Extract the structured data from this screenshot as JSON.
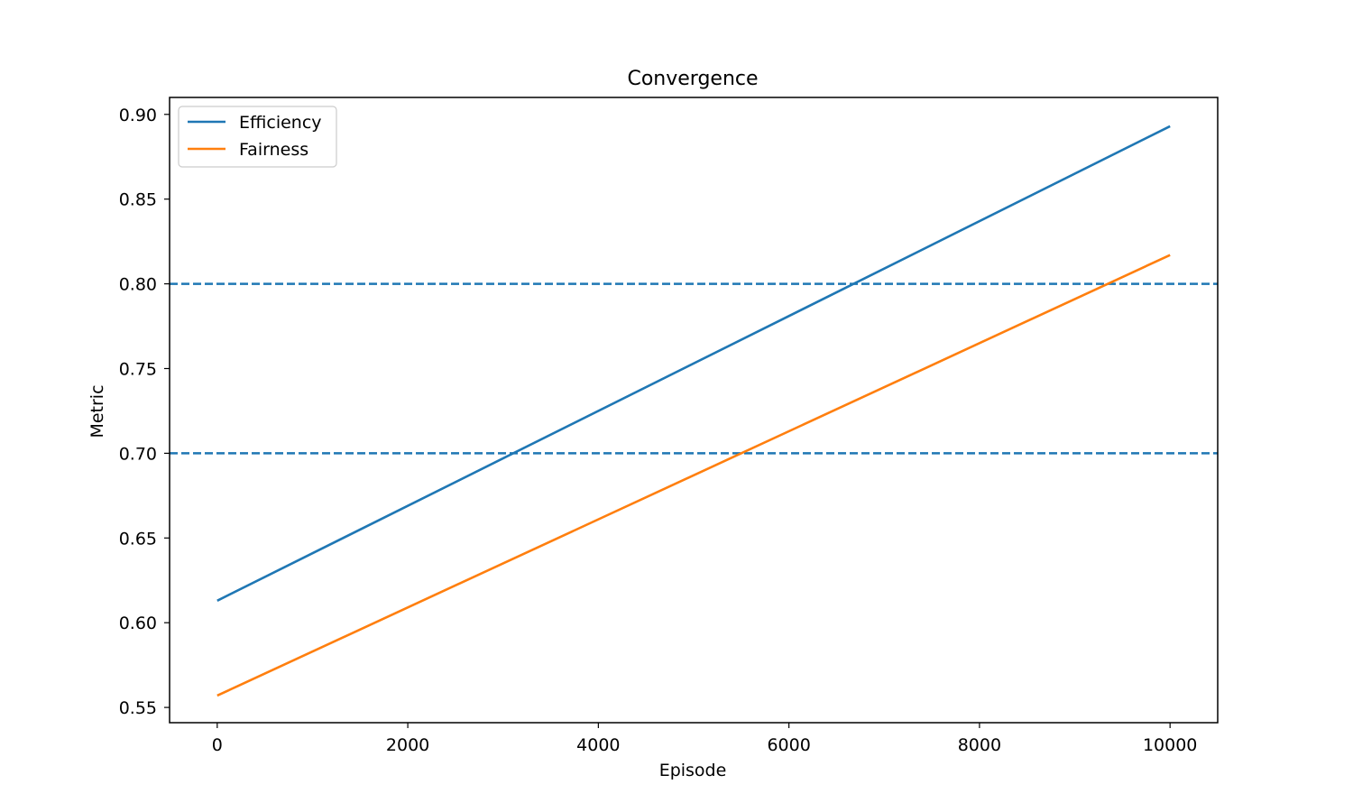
{
  "chart_data": {
    "type": "line",
    "title": "Convergence",
    "xlabel": "Episode",
    "ylabel": "Metric",
    "xlim": [
      -500,
      10500
    ],
    "ylim": [
      0.541,
      0.91
    ],
    "xticks": [
      0,
      2000,
      4000,
      6000,
      8000,
      10000
    ],
    "xtick_labels": [
      "0",
      "2000",
      "4000",
      "6000",
      "8000",
      "10000"
    ],
    "yticks": [
      0.55,
      0.6,
      0.65,
      0.7,
      0.75,
      0.8,
      0.85,
      0.9
    ],
    "ytick_labels": [
      "0.55",
      "0.60",
      "0.65",
      "0.70",
      "0.75",
      "0.80",
      "0.85",
      "0.90"
    ],
    "grid": false,
    "legend_position": "top-left",
    "series": [
      {
        "name": "Efficiency",
        "color": "#1f77b4",
        "x": [
          0,
          10000
        ],
        "y": [
          0.613,
          0.893
        ]
      },
      {
        "name": "Fairness",
        "color": "#ff7f0e",
        "x": [
          0,
          10000
        ],
        "y": [
          0.557,
          0.817
        ]
      }
    ],
    "reference_lines": [
      {
        "y": 0.8,
        "style": "dashed",
        "color": "#1f77b4"
      },
      {
        "y": 0.7,
        "style": "dashed",
        "color": "#1f77b4"
      }
    ]
  }
}
